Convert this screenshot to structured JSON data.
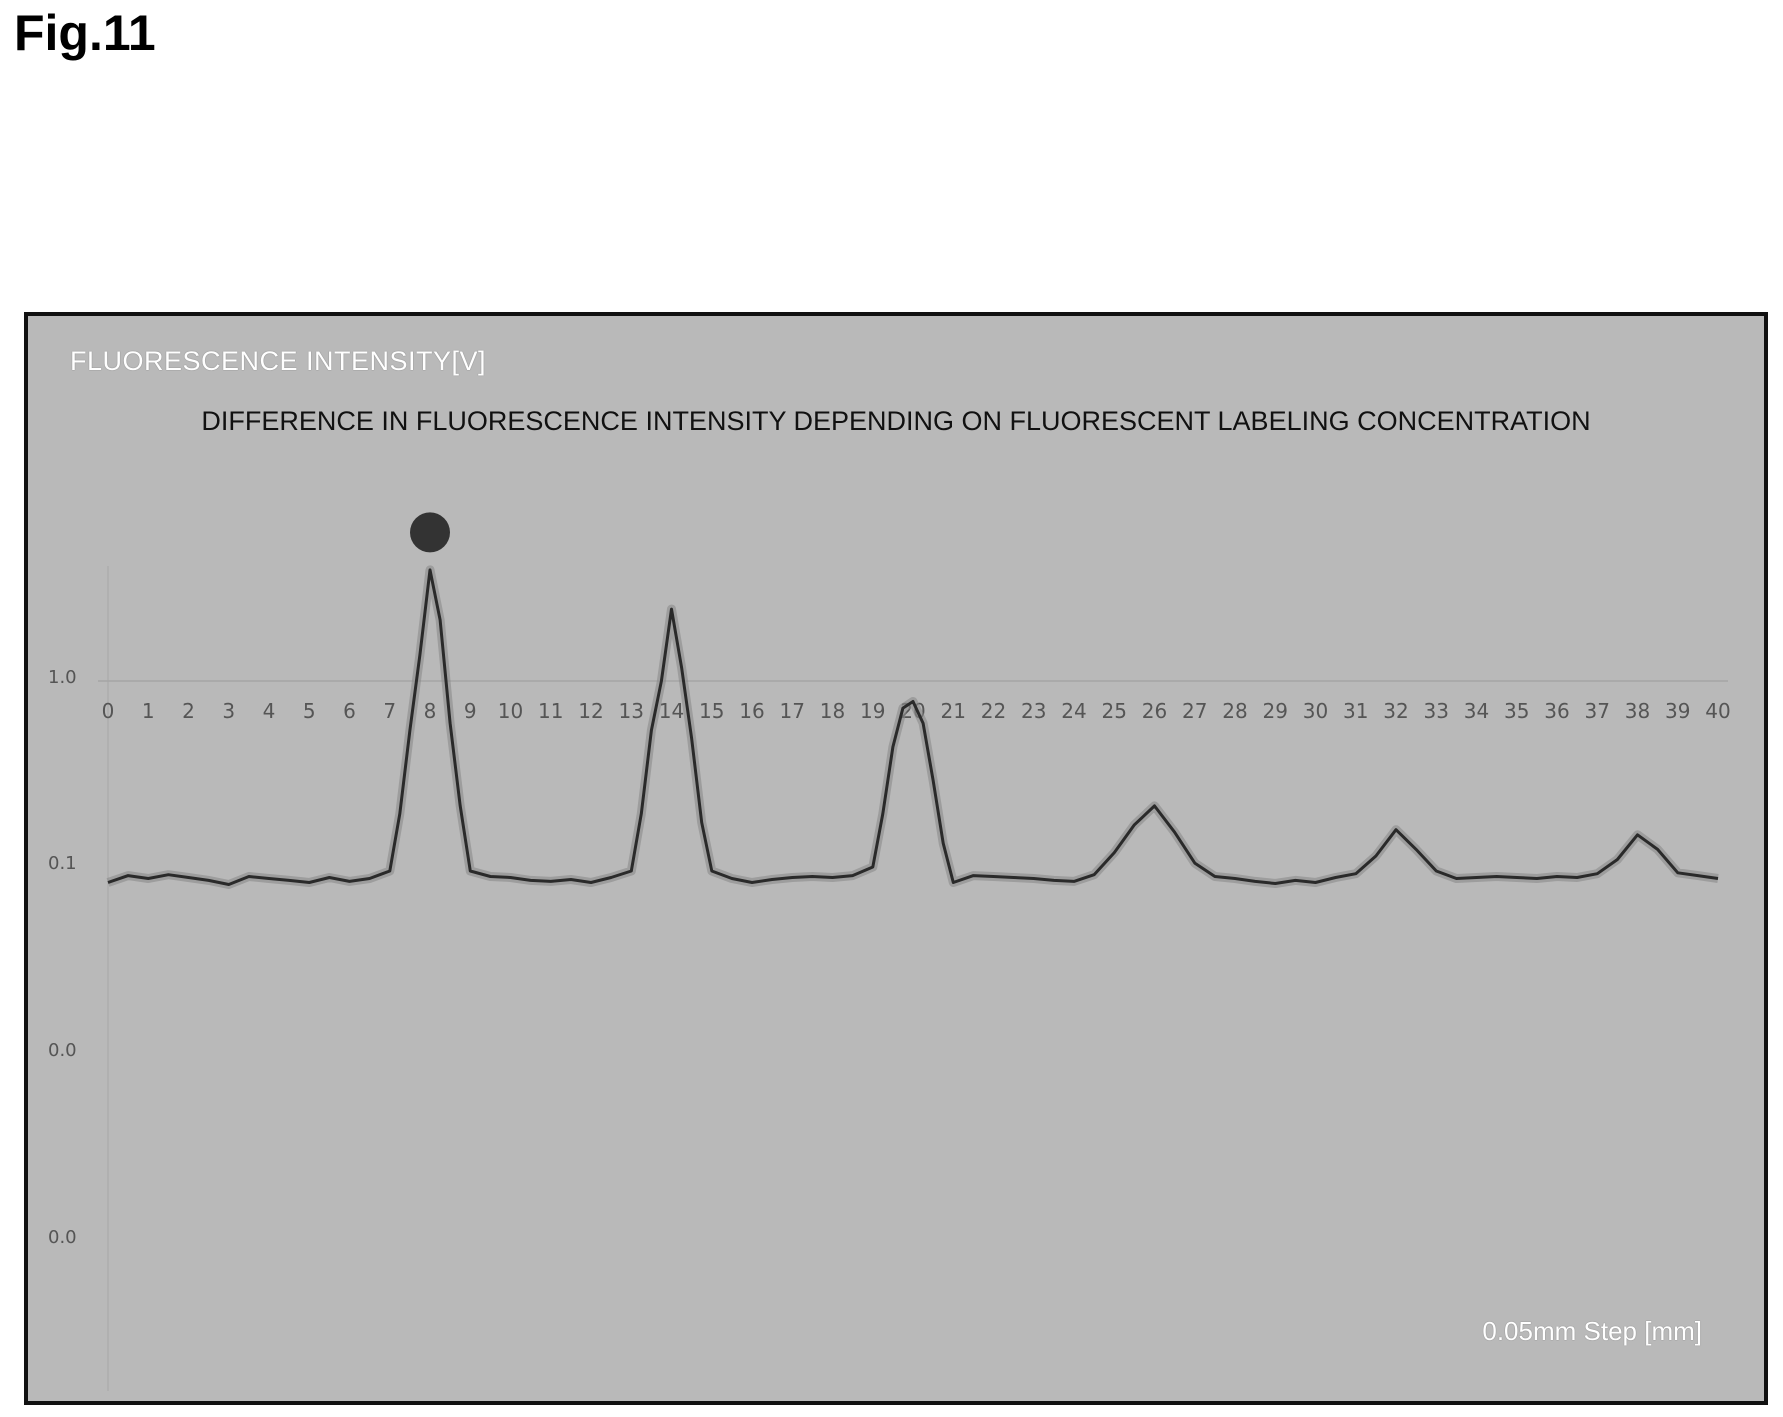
{
  "figure": {
    "label": "Fig.11"
  },
  "chart_data": {
    "type": "line",
    "title": "DIFFERENCE IN FLUORESCENCE INTENSITY DEPENDING ON FLUORESCENT LABELING CONCENTRATION",
    "ylabel": "FLUORESCENCE INTENSITY[V]",
    "xlabel": "0.05mm Step [mm]",
    "x_ticks": [
      "0",
      "1",
      "2",
      "3",
      "4",
      "5",
      "6",
      "7",
      "8",
      "9",
      "10",
      "11",
      "12",
      "13",
      "14",
      "15",
      "16",
      "17",
      "18",
      "19",
      "20",
      "21",
      "22",
      "23",
      "24",
      "25",
      "26",
      "27",
      "28",
      "29",
      "30",
      "31",
      "32",
      "33",
      "34",
      "35",
      "36",
      "37",
      "38",
      "39",
      "40"
    ],
    "y_ticks": [
      "1.0",
      "0.1",
      "0.0",
      "0.0"
    ],
    "xlim": [
      0,
      40
    ],
    "grid": true,
    "legend": "none",
    "line_color": "#2a2a2a",
    "marker_color": "#333333",
    "series": [
      {
        "x": [
          0,
          0.5,
          1,
          1.5,
          2,
          2.5,
          3,
          3.5,
          4,
          4.5,
          5,
          5.5,
          6,
          6.5,
          7,
          7.25,
          7.5,
          7.75,
          8,
          8.25,
          8.5,
          8.75,
          9,
          9.5,
          10,
          10.5,
          11,
          11.5,
          12,
          12.5,
          13,
          13.25,
          13.5,
          13.75,
          14,
          14.25,
          14.5,
          14.75,
          15,
          15.5,
          16,
          16.5,
          17,
          17.5,
          18,
          18.5,
          19,
          19.25,
          19.5,
          19.75,
          20,
          20.25,
          20.5,
          20.75,
          21,
          21.5,
          22,
          22.5,
          23,
          23.5,
          24,
          24.5,
          25,
          25.5,
          26,
          26.5,
          27,
          27.5,
          28,
          28.5,
          29,
          29.5,
          30,
          30.5,
          31,
          31.5,
          32,
          32.5,
          33,
          33.5,
          34,
          34.5,
          35,
          35.5,
          36,
          36.5,
          37,
          37.5,
          38,
          38.5,
          39,
          39.5,
          40
        ],
        "y": [
          0.088,
          0.095,
          0.092,
          0.096,
          0.093,
          0.09,
          0.086,
          0.094,
          0.092,
          0.09,
          0.088,
          0.093,
          0.089,
          0.092,
          0.1,
          0.2,
          0.55,
          1.1,
          1.5,
          1.25,
          0.6,
          0.22,
          0.1,
          0.094,
          0.093,
          0.09,
          0.089,
          0.091,
          0.088,
          0.093,
          0.1,
          0.2,
          0.55,
          1.0,
          1.3,
          1.05,
          0.5,
          0.18,
          0.1,
          0.092,
          0.088,
          0.091,
          0.093,
          0.094,
          0.093,
          0.095,
          0.105,
          0.2,
          0.45,
          0.72,
          0.78,
          0.6,
          0.3,
          0.14,
          0.088,
          0.095,
          0.094,
          0.093,
          0.092,
          0.09,
          0.089,
          0.096,
          0.125,
          0.175,
          0.22,
          0.16,
          0.11,
          0.094,
          0.092,
          0.089,
          0.087,
          0.09,
          0.088,
          0.093,
          0.097,
          0.12,
          0.165,
          0.13,
          0.1,
          0.092,
          0.093,
          0.094,
          0.093,
          0.092,
          0.094,
          0.093,
          0.097,
          0.115,
          0.155,
          0.13,
          0.098,
          0.095,
          0.092
        ]
      }
    ],
    "marker": {
      "x": 8,
      "y": 1.85
    }
  }
}
